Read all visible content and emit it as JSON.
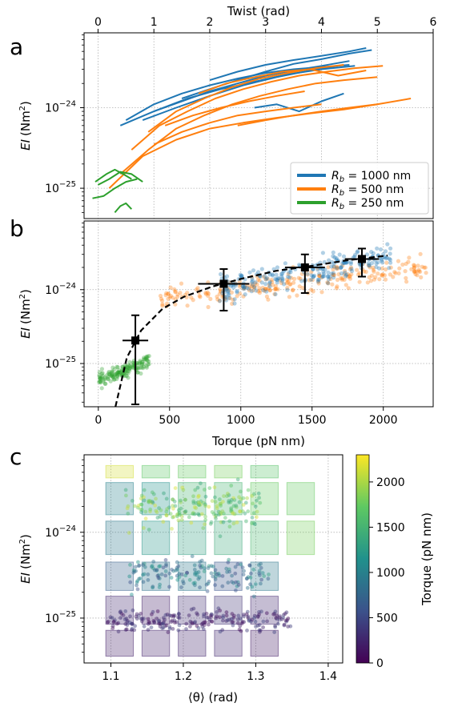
{
  "chart_data": [
    {
      "panel": "a",
      "type": "line",
      "xlabel": "Twist (rad)",
      "ylabel": "EI (Nm²)",
      "ylabel_parts": {
        "main": "EI",
        "unit": "(Nm",
        "sup": "2",
        "close": ")"
      },
      "xlim": [
        -0.25,
        6.0
      ],
      "ylim_log": [
        4.2e-26,
        8.5e-24
      ],
      "xticks": [
        0,
        1,
        2,
        3,
        4,
        5,
        6
      ],
      "yticks": [
        {
          "value": 1e-24,
          "base": "10",
          "exp": "−24"
        },
        {
          "value": 1e-25,
          "base": "10",
          "exp": "−25"
        }
      ],
      "grid": true,
      "legend_position": "lower right",
      "legend": [
        {
          "prefix": "R",
          "sub": "b",
          "text": " = 1000 nm",
          "color": "#1f77b4"
        },
        {
          "prefix": "R",
          "sub": "b",
          "text": " = 500 nm",
          "color": "#ff7f0e"
        },
        {
          "prefix": "R",
          "sub": "b",
          "text": " = 250 nm",
          "color": "#2ca02c"
        }
      ],
      "series": [
        {
          "group": "1000 nm",
          "color": "#1f77b4",
          "x": [
            0.5,
            1.0,
            1.5,
            2.0,
            2.5,
            3.0,
            3.5,
            4.0,
            4.5
          ],
          "y": [
            7e-25,
            1.1e-24,
            1.5e-24,
            1.9e-24,
            2.3e-24,
            2.7e-24,
            3e-24,
            3.2e-24,
            3.4e-24
          ]
        },
        {
          "group": "1000 nm",
          "color": "#1f77b4",
          "x": [
            0.4,
            1.0,
            1.6,
            2.2,
            2.8,
            3.4,
            4.0,
            4.6
          ],
          "y": [
            6e-25,
            9e-25,
            1.3e-24,
            1.7e-24,
            2.1e-24,
            2.6e-24,
            3e-24,
            3.3e-24
          ]
        },
        {
          "group": "1000 nm",
          "color": "#1f77b4",
          "x": [
            1.0,
            1.5,
            2.0,
            2.5,
            3.0,
            3.5,
            4.0,
            4.5
          ],
          "y": [
            9e-25,
            1.2e-24,
            1.6e-24,
            2e-24,
            2.5e-24,
            2.9e-24,
            3.3e-24,
            3.8e-24
          ]
        },
        {
          "group": "1000 nm",
          "color": "#1f77b4",
          "x": [
            1.5,
            2.0,
            2.5,
            3.0,
            3.5,
            4.0,
            4.5,
            4.9
          ],
          "y": [
            1.3e-24,
            1.7e-24,
            2.2e-24,
            2.8e-24,
            3.5e-24,
            4e-24,
            4.7e-24,
            5.2e-24
          ]
        },
        {
          "group": "1000 nm",
          "color": "#1f77b4",
          "x": [
            0.8,
            1.4,
            2.0,
            2.6,
            3.2,
            3.8,
            4.4
          ],
          "y": [
            7e-25,
            1e-24,
            1.4e-24,
            1.9e-24,
            2.4e-24,
            2.9e-24,
            3.4e-24
          ]
        },
        {
          "group": "1000 nm",
          "color": "#1f77b4",
          "x": [
            2.0,
            2.5,
            3.0,
            3.5,
            4.0,
            4.5,
            4.8
          ],
          "y": [
            2.2e-24,
            2.8e-24,
            3.4e-24,
            3.9e-24,
            4.4e-24,
            5e-24,
            5.5e-24
          ]
        },
        {
          "group": "1000 nm",
          "color": "#1f77b4",
          "x": [
            2.8,
            3.2,
            3.6,
            4.0,
            4.4
          ],
          "y": [
            1e-24,
            1.1e-24,
            9e-25,
            1.2e-24,
            1.5e-24
          ]
        },
        {
          "group": "500 nm",
          "color": "#ff7f0e",
          "x": [
            0.2,
            0.8,
            1.4,
            2.0,
            2.6,
            3.2,
            3.8,
            4.4,
            5.0,
            5.6
          ],
          "y": [
            1e-25,
            2.5e-25,
            4e-25,
            5.5e-25,
            6.5e-25,
            7.5e-25,
            8.5e-25,
            9.5e-25,
            1.1e-24,
            1.3e-24
          ]
        },
        {
          "group": "500 nm",
          "color": "#ff7f0e",
          "x": [
            0.4,
            0.9,
            1.4,
            1.9,
            2.4,
            2.9,
            3.4,
            3.9,
            4.4,
            5.0
          ],
          "y": [
            1.5e-25,
            3e-25,
            5.5e-25,
            8e-25,
            1.1e-24,
            1.4e-24,
            1.7e-24,
            2e-24,
            2.2e-24,
            2.4e-24
          ]
        },
        {
          "group": "500 nm",
          "color": "#ff7f0e",
          "x": [
            0.6,
            1.1,
            1.6,
            2.1,
            2.6,
            3.1,
            3.6,
            4.1,
            4.6,
            5.1
          ],
          "y": [
            3e-25,
            6e-25,
            9e-25,
            1.3e-24,
            1.7e-24,
            2.1e-24,
            2.5e-24,
            2.8e-24,
            3.1e-24,
            3.3e-24
          ]
        },
        {
          "group": "500 nm",
          "color": "#ff7f0e",
          "x": [
            0.9,
            1.4,
            1.9,
            2.4,
            2.9,
            3.4,
            3.9,
            4.4
          ],
          "y": [
            5e-25,
            9e-25,
            1.3e-24,
            1.8e-24,
            2.3e-24,
            2.7e-24,
            3.1e-24,
            3.4e-24
          ]
        },
        {
          "group": "500 nm",
          "color": "#ff7f0e",
          "x": [
            1.2,
            1.7,
            2.2,
            2.7,
            3.2,
            3.7
          ],
          "y": [
            6e-25,
            8e-25,
            1e-24,
            1.2e-24,
            1.4e-24,
            1.6e-24
          ]
        },
        {
          "group": "500 nm",
          "color": "#ff7f0e",
          "x": [
            1.8,
            2.3,
            2.8,
            3.3,
            3.8,
            4.3,
            4.8
          ],
          "y": [
            1.5e-24,
            2e-24,
            2.4e-24,
            2.8e-24,
            3e-24,
            2.5e-24,
            2.9e-24
          ]
        },
        {
          "group": "500 nm",
          "color": "#ff7f0e",
          "x": [
            1.0,
            1.5,
            2.0,
            2.5,
            3.0,
            3.5,
            4.0
          ],
          "y": [
            3.5e-25,
            5e-25,
            6.5e-25,
            8e-25,
            9e-25,
            1e-24,
            1.1e-24
          ]
        },
        {
          "group": "500 nm",
          "color": "#ff7f0e",
          "x": [
            2.5,
            3.0,
            3.5,
            4.0,
            4.5,
            5.0
          ],
          "y": [
            6e-25,
            7e-25,
            8e-25,
            9e-25,
            1e-24,
            1.1e-24
          ]
        },
        {
          "group": "250 nm",
          "color": "#2ca02c",
          "x": [
            -0.1,
            0.1,
            0.3,
            0.5,
            0.7
          ],
          "y": [
            7.5e-26,
            8e-26,
            1e-25,
            1.2e-25,
            1.3e-25
          ]
        },
        {
          "group": "250 nm",
          "color": "#2ca02c",
          "x": [
            -0.05,
            0.15,
            0.3,
            0.45,
            0.6
          ],
          "y": [
            1.2e-25,
            1.5e-25,
            1.7e-25,
            1.5e-25,
            1.3e-25
          ]
        },
        {
          "group": "250 nm",
          "color": "#2ca02c",
          "x": [
            0.3,
            0.4,
            0.5,
            0.6
          ],
          "y": [
            5e-26,
            6e-26,
            6.5e-26,
            5.5e-26
          ]
        },
        {
          "group": "250 nm",
          "color": "#2ca02c",
          "x": [
            0.0,
            0.2,
            0.4,
            0.6,
            0.8
          ],
          "y": [
            1.1e-25,
            1.3e-25,
            1.6e-25,
            1.5e-25,
            1.2e-25
          ]
        }
      ]
    },
    {
      "panel": "b",
      "type": "scatter",
      "xlabel": "Torque (pN nm)",
      "ylabel": "EI (Nm²)",
      "xlim": [
        -100,
        2350
      ],
      "ylim_log": [
        2.6e-26,
        8.5e-24
      ],
      "xticks": [
        0,
        500,
        1000,
        1500,
        2000
      ],
      "yticks": [
        {
          "value": 1e-24,
          "base": "10",
          "exp": "−24"
        },
        {
          "value": 1e-25,
          "base": "10",
          "exp": "−25"
        }
      ],
      "grid": true,
      "clusters": [
        {
          "group": "250 nm",
          "color": "#2ca02c",
          "x_range": [
            0,
            360
          ],
          "y_log10_range": [
            -25.4,
            -24.9
          ],
          "n": 150
        },
        {
          "group": "500 nm",
          "color": "#ff7f0e",
          "x_range": [
            400,
            2300
          ],
          "y_log10_range": [
            -24.45,
            -23.55
          ],
          "n": 260
        },
        {
          "group": "1000 nm",
          "color": "#1f77b4",
          "x_range": [
            850,
            2050
          ],
          "y_log10_range": [
            -24.35,
            -23.4
          ],
          "n": 240
        }
      ],
      "binned_means": [
        {
          "x": 260,
          "y": 2.05e-25,
          "x_err": 90,
          "y_lo": 2.8e-26,
          "y_hi": 4.5e-25
        },
        {
          "x": 880,
          "y": 1.2e-24,
          "x_err": 180,
          "y_lo": 5.2e-25,
          "y_hi": 1.9e-24
        },
        {
          "x": 1450,
          "y": 2e-24,
          "x_err": 140,
          "y_lo": 9e-25,
          "y_hi": 3e-24
        },
        {
          "x": 1850,
          "y": 2.6e-24,
          "x_err": 120,
          "y_lo": 1.5e-24,
          "y_hi": 3.6e-24
        }
      ],
      "fit_curve": {
        "style": "dashed",
        "x": [
          120,
          200,
          300,
          450,
          600,
          800,
          1000,
          1250,
          1500,
          1750,
          2030
        ],
        "y": [
          2.6e-26,
          1.2e-25,
          2.8e-25,
          5.5e-25,
          8e-25,
          1.1e-24,
          1.4e-24,
          1.8e-24,
          2.1e-24,
          2.5e-24,
          2.9e-24
        ]
      }
    },
    {
      "panel": "c",
      "type": "scatter",
      "xlabel": "⟨θ⟩ (rad)",
      "ylabel": "EI (Nm²)",
      "xlim": [
        1.063,
        1.42
      ],
      "ylim_log": [
        3e-26,
        8e-24
      ],
      "xticks": [
        1.1,
        1.2,
        1.3,
        1.4
      ],
      "yticks": [
        {
          "value": 1e-24,
          "base": "10",
          "exp": "−24"
        },
        {
          "value": 1e-25,
          "base": "10",
          "exp": "−25"
        }
      ],
      "grid": true,
      "colorbar": {
        "label": "Torque (pN nm)",
        "range": [
          0,
          2300
        ],
        "ticks": [
          0,
          500,
          1000,
          1500,
          2000
        ],
        "colormap": "viridis"
      },
      "heat_cells": [
        {
          "x0": 1.093,
          "x1": 1.131,
          "y0": 4.3e-24,
          "y1": 6e-24,
          "torque": 2150
        },
        {
          "x0": 1.143,
          "x1": 1.181,
          "y0": 4.3e-24,
          "y1": 6e-24,
          "torque": 1700
        },
        {
          "x0": 1.193,
          "x1": 1.231,
          "y0": 4.3e-24,
          "y1": 6e-24,
          "torque": 1750
        },
        {
          "x0": 1.243,
          "x1": 1.281,
          "y0": 4.3e-24,
          "y1": 6e-24,
          "torque": 1800
        },
        {
          "x0": 1.293,
          "x1": 1.331,
          "y0": 4.3e-24,
          "y1": 6e-24,
          "torque": 1650
        },
        {
          "x0": 1.093,
          "x1": 1.131,
          "y0": 1.6e-24,
          "y1": 3.8e-24,
          "torque": 1000
        },
        {
          "x0": 1.143,
          "x1": 1.181,
          "y0": 1.6e-24,
          "y1": 3.8e-24,
          "torque": 1150
        },
        {
          "x0": 1.193,
          "x1": 1.231,
          "y0": 1.6e-24,
          "y1": 3.8e-24,
          "torque": 1500
        },
        {
          "x0": 1.243,
          "x1": 1.281,
          "y0": 1.6e-24,
          "y1": 3.8e-24,
          "torque": 1500
        },
        {
          "x0": 1.293,
          "x1": 1.331,
          "y0": 1.6e-24,
          "y1": 3.8e-24,
          "torque": 1750
        },
        {
          "x0": 1.343,
          "x1": 1.381,
          "y0": 1.6e-24,
          "y1": 3.8e-24,
          "torque": 1750
        },
        {
          "x0": 1.093,
          "x1": 1.131,
          "y0": 5.5e-25,
          "y1": 1.35e-24,
          "torque": 900
        },
        {
          "x0": 1.143,
          "x1": 1.181,
          "y0": 5.5e-25,
          "y1": 1.35e-24,
          "torque": 1200
        },
        {
          "x0": 1.193,
          "x1": 1.231,
          "y0": 5.5e-25,
          "y1": 1.35e-24,
          "torque": 1300
        },
        {
          "x0": 1.243,
          "x1": 1.281,
          "y0": 5.5e-25,
          "y1": 1.35e-24,
          "torque": 1400
        },
        {
          "x0": 1.293,
          "x1": 1.331,
          "y0": 5.5e-25,
          "y1": 1.35e-24,
          "torque": 1550
        },
        {
          "x0": 1.343,
          "x1": 1.381,
          "y0": 5.5e-25,
          "y1": 1.35e-24,
          "torque": 1800
        },
        {
          "x0": 1.093,
          "x1": 1.131,
          "y0": 2.1e-25,
          "y1": 4.5e-25,
          "torque": 700
        },
        {
          "x0": 1.143,
          "x1": 1.181,
          "y0": 2.1e-25,
          "y1": 4.5e-25,
          "torque": 850
        },
        {
          "x0": 1.193,
          "x1": 1.231,
          "y0": 2.1e-25,
          "y1": 4.5e-25,
          "torque": 900
        },
        {
          "x0": 1.243,
          "x1": 1.281,
          "y0": 2.1e-25,
          "y1": 4.5e-25,
          "torque": 600
        },
        {
          "x0": 1.293,
          "x1": 1.331,
          "y0": 2.1e-25,
          "y1": 4.5e-25,
          "torque": 900
        },
        {
          "x0": 1.093,
          "x1": 1.131,
          "y0": 8.5e-26,
          "y1": 1.8e-25,
          "torque": 250
        },
        {
          "x0": 1.143,
          "x1": 1.181,
          "y0": 8.5e-26,
          "y1": 1.8e-25,
          "torque": 200
        },
        {
          "x0": 1.193,
          "x1": 1.231,
          "y0": 8.5e-26,
          "y1": 1.8e-25,
          "torque": 300
        },
        {
          "x0": 1.243,
          "x1": 1.281,
          "y0": 8.5e-26,
          "y1": 1.8e-25,
          "torque": 350
        },
        {
          "x0": 1.293,
          "x1": 1.331,
          "y0": 8.5e-26,
          "y1": 1.8e-25,
          "torque": 250
        },
        {
          "x0": 1.093,
          "x1": 1.131,
          "y0": 3.6e-26,
          "y1": 7.2e-26,
          "torque": 200
        },
        {
          "x0": 1.143,
          "x1": 1.181,
          "y0": 3.6e-26,
          "y1": 7.2e-26,
          "torque": 220
        },
        {
          "x0": 1.193,
          "x1": 1.231,
          "y0": 3.6e-26,
          "y1": 7.2e-26,
          "torque": 230
        },
        {
          "x0": 1.243,
          "x1": 1.281,
          "y0": 3.6e-26,
          "y1": 7.2e-26,
          "torque": 250
        },
        {
          "x0": 1.293,
          "x1": 1.331,
          "y0": 3.6e-26,
          "y1": 7.2e-26,
          "torque": 180
        }
      ],
      "clusters": [
        {
          "x_range": [
            1.095,
            1.35
          ],
          "y_log10_range": [
            -25.2,
            -24.85
          ],
          "torque_range": [
            50,
            500
          ],
          "n": 220
        },
        {
          "x_range": [
            1.12,
            1.32
          ],
          "y_log10_range": [
            -24.8,
            -24.2
          ],
          "torque_range": [
            500,
            1300
          ],
          "n": 160
        },
        {
          "x_range": [
            1.12,
            1.31
          ],
          "y_log10_range": [
            -24.1,
            -23.35
          ],
          "torque_range": [
            1300,
            2200
          ],
          "n": 200
        }
      ]
    }
  ],
  "panel_labels": {
    "a": "a",
    "b": "b",
    "c": "c"
  }
}
